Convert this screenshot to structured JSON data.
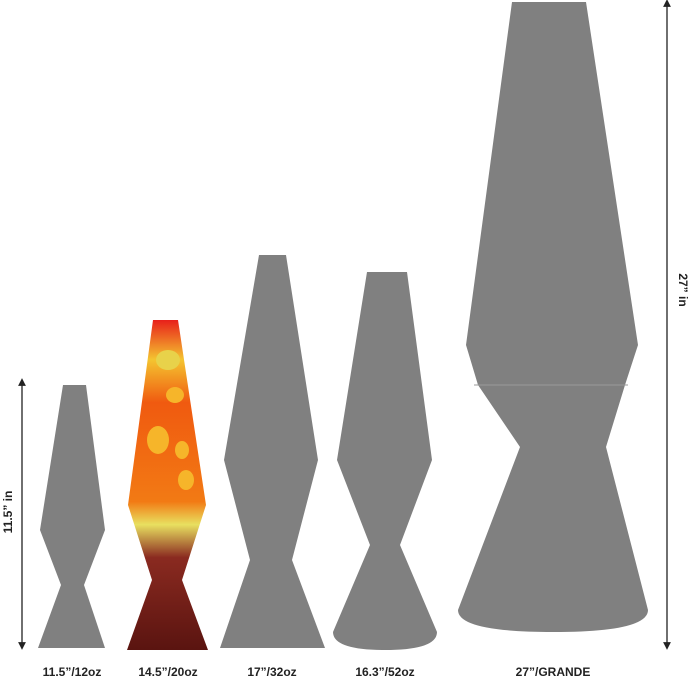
{
  "dimensions": {
    "small_height": "11.5” in",
    "large_height": "27” in"
  },
  "lamps": [
    {
      "label": "11.5”/12oz"
    },
    {
      "label": "14.5”/20oz"
    },
    {
      "label": "17”/32oz"
    },
    {
      "label": "16.3”/52oz"
    },
    {
      "label": "27”/GRANDE"
    }
  ]
}
